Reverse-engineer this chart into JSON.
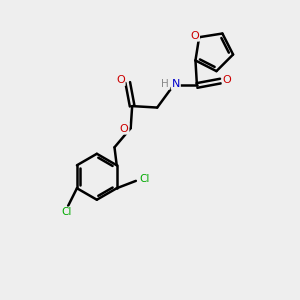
{
  "background_color": "#eeeeee",
  "atom_colors": {
    "C": "#000000",
    "H": "#888888",
    "N": "#0000cc",
    "O": "#cc0000",
    "Cl": "#00aa00"
  },
  "bond_color": "#000000",
  "bond_width": 1.8,
  "figsize": [
    3.0,
    3.0
  ],
  "dpi": 100
}
